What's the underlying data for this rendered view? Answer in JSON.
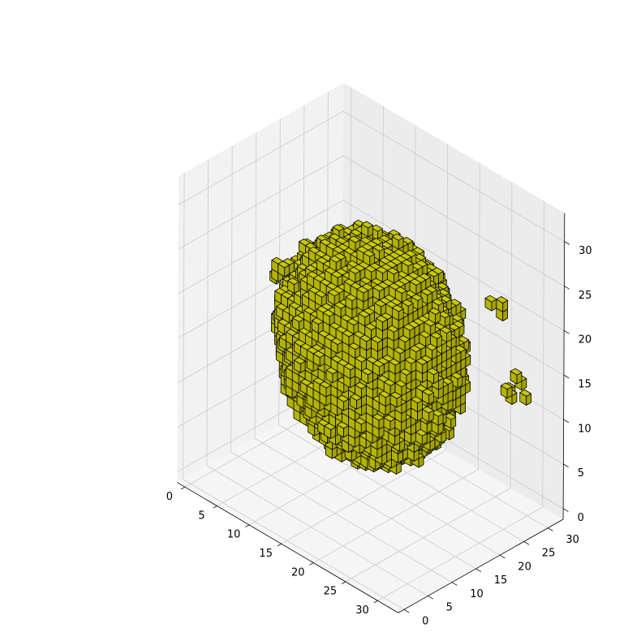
{
  "chart_data": {
    "type": "voxel",
    "title": "",
    "xlabel": "",
    "ylabel": "",
    "zlabel": "",
    "xlim": [
      0,
      32
    ],
    "ylim": [
      0,
      32
    ],
    "zlim": [
      0,
      32
    ],
    "x_ticks": [
      "0",
      "5",
      "10",
      "15",
      "20",
      "25",
      "30"
    ],
    "y_ticks": [
      "0",
      "5",
      "10",
      "15",
      "20",
      "25",
      "30"
    ],
    "z_ticks": [
      "0",
      "5",
      "10",
      "15",
      "20",
      "25",
      "30"
    ],
    "grid": true,
    "face_color": "#bfbf00",
    "edge_color": "#000000",
    "main_blob": {
      "center": [
        16,
        16,
        16
      ],
      "radius": 11.5
    },
    "extra_clusters": [
      [
        [
          2,
          30,
          2
        ],
        [
          3,
          30,
          2
        ],
        [
          2,
          31,
          2
        ]
      ],
      [
        [
          5,
          10,
          22
        ],
        [
          6,
          10,
          22
        ],
        [
          5,
          11,
          21
        ],
        [
          6,
          11,
          22
        ],
        [
          5,
          10,
          21
        ],
        [
          4,
          11,
          20
        ]
      ],
      [
        [
          30,
          21,
          25
        ],
        [
          31,
          22,
          24
        ],
        [
          31,
          22,
          25
        ]
      ],
      [
        [
          31,
          23,
          15
        ],
        [
          31,
          24,
          14
        ],
        [
          31,
          25,
          16
        ],
        [
          31,
          26,
          15
        ],
        [
          30,
          25,
          14
        ],
        [
          31,
          27,
          13
        ]
      ]
    ]
  }
}
